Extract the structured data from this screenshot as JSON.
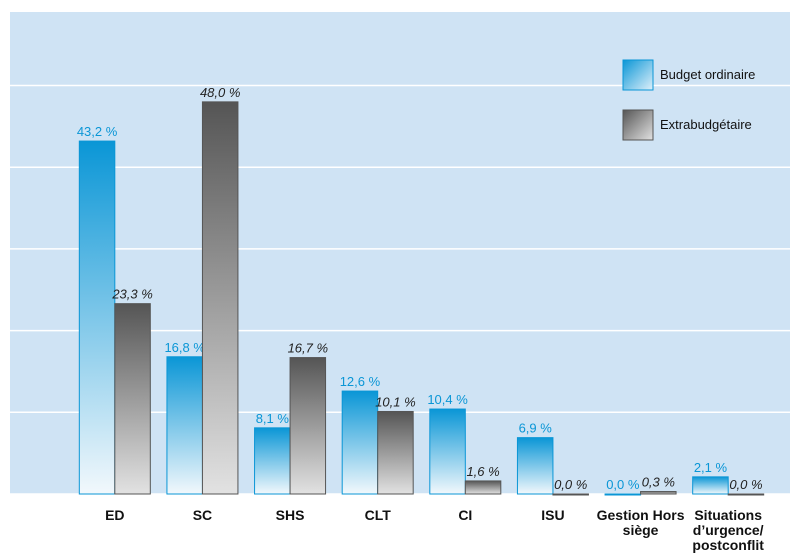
{
  "chart_data": {
    "type": "bar",
    "categories": [
      "ED",
      "SC",
      "SHS",
      "CLT",
      "CI",
      "ISU",
      "Gestion Hors siège",
      "Situations d’urgence/ postconflit"
    ],
    "series": [
      {
        "name": "Budget ordinaire",
        "color": "#0a96d6",
        "values": [
          43.2,
          16.8,
          8.1,
          12.6,
          10.4,
          6.9,
          0.0,
          2.1
        ],
        "value_labels": [
          "43,2 %",
          "16,8 %",
          "8,1 %",
          "12,6 %",
          "10,4 %",
          "6,9 %",
          "0,0 %",
          "2,1 %"
        ]
      },
      {
        "name": "Extrabudgétaire",
        "color": "#555555",
        "values": [
          23.3,
          48.0,
          16.7,
          10.1,
          1.6,
          0.0,
          0.3,
          0.0
        ],
        "value_labels": [
          "23,3 %",
          "48,0 %",
          "16,7 %",
          "10,1 %",
          "1,6 %",
          "0,0 %",
          "0,3 %",
          "0,0 %"
        ]
      }
    ],
    "ylim": [
      0,
      59
    ],
    "yticks": [
      0,
      10,
      20,
      30,
      40,
      50
    ],
    "grid": true,
    "legend": "upper right"
  }
}
